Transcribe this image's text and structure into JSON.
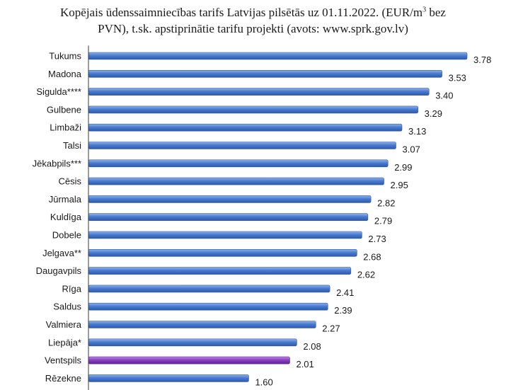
{
  "chart_data": {
    "type": "bar",
    "orientation": "horizontal",
    "title": {
      "line1_before": "Kopējais ūdenssaimniecības tarifs Latvijas pilsētās uz 01.11.2022. (EUR/m",
      "line1_sup": "3",
      "line1_after": " bez",
      "line2": "PVN), t.sk. apstiprinātie tarifu projekti (avots: www.sprk.gov.lv)"
    },
    "categories": [
      "Tukums",
      "Madona",
      "Sigulda****",
      "Gulbene",
      "Limbaži",
      "Talsi",
      "Jēkabpils***",
      "Cēsis",
      "Jūrmala",
      "Kuldīga",
      "Dobele",
      "Jelgava**",
      "Daugavpils",
      "Rīga",
      "Saldus",
      "Valmiera",
      "Liepāja*",
      "Ventspils",
      "Rēzekne"
    ],
    "values": [
      3.78,
      3.53,
      3.4,
      3.29,
      3.13,
      3.07,
      2.99,
      2.95,
      2.82,
      2.79,
      2.73,
      2.68,
      2.62,
      2.41,
      2.39,
      2.27,
      2.08,
      2.01,
      1.6
    ],
    "value_labels": [
      "3.78",
      "3.53",
      "3.40",
      "3.29",
      "3.13",
      "3.07",
      "2.99",
      "2.95",
      "2.82",
      "2.79",
      "2.73",
      "2.68",
      "2.62",
      "2.41",
      "2.39",
      "2.27",
      "2.08",
      "2.01",
      "1.60"
    ],
    "highlight_category": "Ventspils",
    "xlim": [
      0,
      3.78
    ],
    "grid": false,
    "legend": "none",
    "colors": {
      "bar": "#4a7bd0",
      "bar_dark": "#2d5aa8",
      "bar_light": "#8fb3ea",
      "highlight": "#8a3fc4",
      "highlight_dark": "#5e2590",
      "highlight_light": "#c08ae6",
      "axis": "#3a3a3a"
    }
  }
}
